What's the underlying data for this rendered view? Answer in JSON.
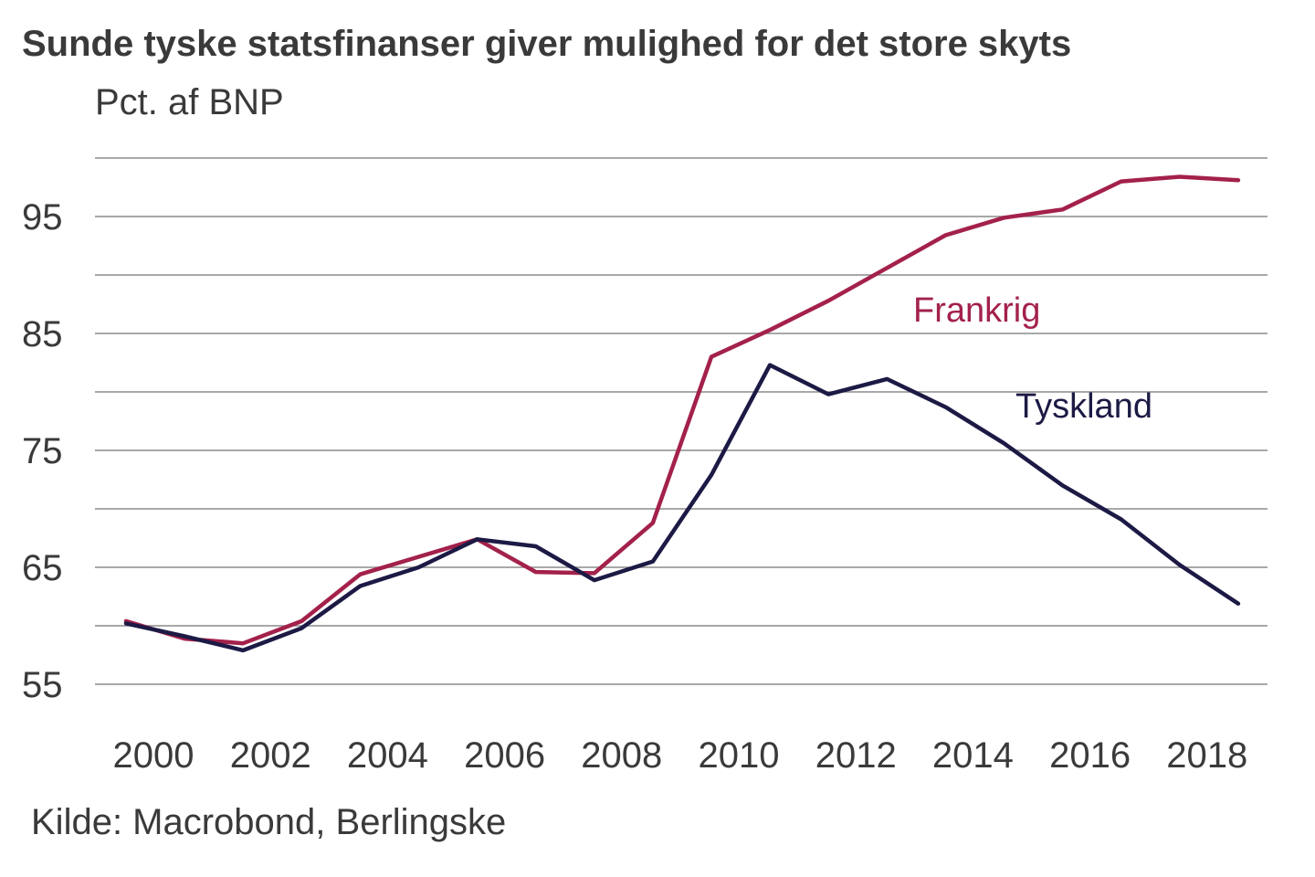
{
  "title": "Sunde tyske statsfinanser giver mulighed for det store skyts",
  "unit_label": "Pct. af BNP",
  "source": "Kilde: Macrobond, Berlingske",
  "chart_data": {
    "type": "line",
    "title": "Sunde tyske statsfinanser giver mulighed for det store skyts",
    "ylabel": "Pct. af BNP",
    "xlabel": "",
    "x": [
      2000,
      2001,
      2002,
      2003,
      2004,
      2005,
      2006,
      2007,
      2008,
      2009,
      2010,
      2011,
      2012,
      2013,
      2014,
      2015,
      2016,
      2017,
      2018,
      2019
    ],
    "x_ticks": [
      "2000",
      "2002",
      "2004",
      "2006",
      "2008",
      "2010",
      "2012",
      "2014",
      "2016",
      "2018"
    ],
    "y_ticks": [
      "55",
      "65",
      "75",
      "85",
      "95"
    ],
    "y_gridlines": [
      55,
      60,
      65,
      70,
      75,
      80,
      85,
      90,
      95,
      100
    ],
    "ylim": [
      55,
      100
    ],
    "grid": true,
    "series": [
      {
        "name": "Frankrig",
        "color": "#a3214a",
        "values": [
          60.4,
          58.9,
          58.5,
          60.4,
          64.4,
          65.9,
          67.4,
          64.6,
          64.5,
          68.8,
          83.0,
          85.3,
          87.8,
          90.6,
          93.4,
          94.9,
          95.6,
          98.0,
          98.4,
          98.1
        ]
      },
      {
        "name": "Tyskland",
        "color": "#1c1a45",
        "values": [
          60.2,
          59.1,
          57.9,
          59.8,
          63.4,
          65.0,
          67.4,
          66.8,
          63.9,
          65.5,
          72.9,
          82.3,
          79.8,
          81.1,
          78.7,
          75.6,
          72.0,
          69.1,
          65.2,
          61.9
        ]
      }
    ]
  }
}
